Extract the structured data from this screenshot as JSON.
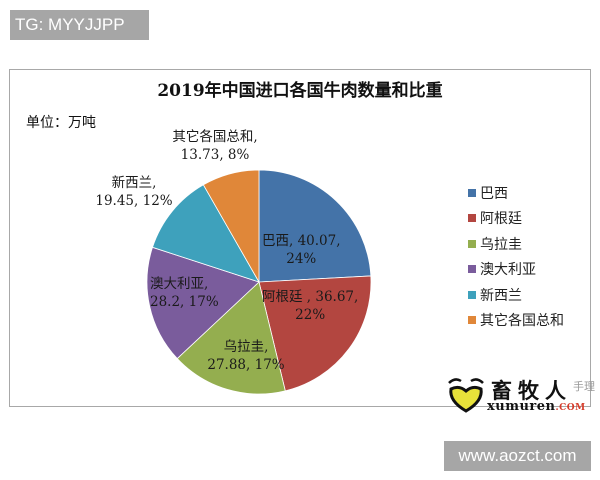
{
  "watermark_top": "TG: MYYJJPP",
  "watermark_bottom": "www.aozct.com",
  "logo": {
    "cn": "畜牧人",
    "cn_faint": "手理",
    "en": "xumuren",
    "en_suffix": ".COM"
  },
  "chart": {
    "title": "2019年中国进口各国牛肉数量和比重",
    "unit": "单位：万吨"
  },
  "labels": [
    {
      "line1": "巴西, 40.07,",
      "line2": "24%"
    },
    {
      "line1": "阿根廷 , 36.67,",
      "line2": "22%"
    },
    {
      "line1": "乌拉圭,",
      "line2": "27.88, 17%"
    },
    {
      "line1": "澳大利亚,",
      "line2": "28.2, 17%"
    },
    {
      "line1": "新西兰,",
      "line2": "19.45, 12%"
    },
    {
      "line1": "其它各国总和,",
      "line2": "13.73, 8%"
    }
  ],
  "legend": [
    {
      "label": "巴西",
      "color": "#4473a8"
    },
    {
      "label": "阿根廷",
      "color": "#b34640"
    },
    {
      "label": "乌拉圭",
      "color": "#94ae4f"
    },
    {
      "label": "澳大利亚",
      "color": "#7a5c9c"
    },
    {
      "label": "新西兰",
      "color": "#3ea1bc"
    },
    {
      "label": "其它各国总和",
      "color": "#e08739"
    }
  ],
  "chart_data": {
    "type": "pie",
    "title": "2019年中国进口各国牛肉数量和比重",
    "subtitle": "单位：万吨",
    "categories": [
      "巴西",
      "阿根廷",
      "乌拉圭",
      "澳大利亚",
      "新西兰",
      "其它各国总和"
    ],
    "values": [
      40.07,
      36.67,
      27.88,
      28.2,
      19.45,
      13.73
    ],
    "percentages": [
      24,
      22,
      17,
      17,
      12,
      8
    ],
    "colors": [
      "#4473a8",
      "#b34640",
      "#94ae4f",
      "#7a5c9c",
      "#3ea1bc",
      "#e08739"
    ],
    "legend_position": "right",
    "start_angle": "12 o'clock, clockwise"
  }
}
